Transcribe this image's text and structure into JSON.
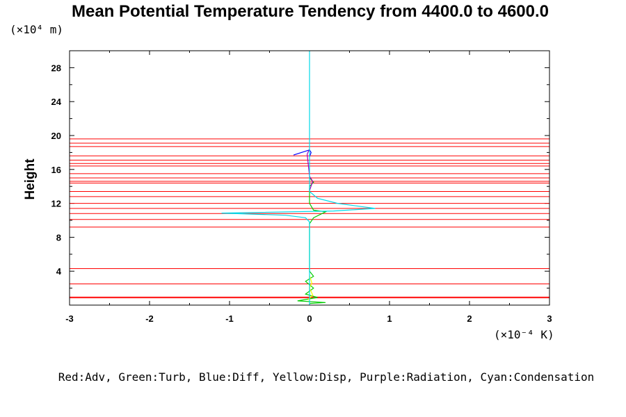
{
  "chart_data": {
    "type": "line",
    "title": "Mean Potential Temperature Tendency from 4400.0 to 4600.0",
    "ylabel": "Height",
    "yunit": "(×10⁴ m)",
    "xunit": "(×10⁻⁴ K)",
    "xlim": [
      -3,
      3
    ],
    "ylim": [
      0,
      30
    ],
    "xticks": [
      "-3",
      "-2",
      "-1",
      "0",
      "1",
      "2",
      "3"
    ],
    "yticks": [
      "4",
      "8",
      "12",
      "16",
      "20",
      "24",
      "28"
    ],
    "legend_note": "Red:Adv, Green:Turb, Blue:Diff, Yellow:Disp, Purple:Radiation, Cyan:Condensation",
    "colors": {
      "adv": "#ff0000",
      "turb": "#00cc00",
      "diff": "#0000ff",
      "disp": "#ffff00",
      "radiation": "#a000c0",
      "condensation": "#00d8e8"
    },
    "series": [
      {
        "key": "adv",
        "points": [
          [
            -3,
            0.85
          ],
          [
            3,
            0.85
          ],
          [
            -3,
            0.95
          ],
          [
            3,
            0.95
          ],
          [
            -3,
            2.5
          ],
          [
            3,
            2.5
          ],
          [
            -3,
            4.3
          ],
          [
            3,
            4.3
          ],
          [
            -3,
            9.2
          ],
          [
            3,
            9.2
          ],
          [
            -3,
            10.1
          ],
          [
            3,
            10.1
          ],
          [
            -3,
            10.8
          ],
          [
            3,
            10.8
          ],
          [
            -3,
            11.4
          ],
          [
            3,
            11.4
          ],
          [
            -3,
            12.0
          ],
          [
            3,
            12.0
          ],
          [
            -3,
            12.8
          ],
          [
            3,
            12.8
          ],
          [
            -3,
            13.4
          ],
          [
            3,
            13.4
          ],
          [
            -3,
            14.4
          ],
          [
            3,
            14.4
          ],
          [
            -3,
            14.6
          ],
          [
            3,
            14.6
          ],
          [
            -3,
            15.0
          ],
          [
            3,
            15.0
          ],
          [
            -3,
            15.5
          ],
          [
            3,
            15.5
          ],
          [
            -3,
            16.4
          ],
          [
            3,
            16.4
          ],
          [
            -3,
            16.7
          ],
          [
            3,
            16.7
          ],
          [
            -3,
            17.1
          ],
          [
            3,
            17.1
          ],
          [
            -3,
            17.6
          ],
          [
            3,
            17.6
          ],
          [
            -3,
            18.7
          ],
          [
            3,
            18.7
          ],
          [
            -3,
            19.1
          ],
          [
            3,
            19.1
          ],
          [
            -3,
            19.6
          ],
          [
            3,
            19.6
          ]
        ]
      },
      {
        "key": "turb",
        "points": [
          [
            0.0,
            0.2
          ],
          [
            0.2,
            0.3
          ],
          [
            -0.15,
            0.5
          ],
          [
            0.1,
            0.9
          ],
          [
            -0.05,
            1.3
          ],
          [
            0.05,
            2.0
          ],
          [
            -0.05,
            2.8
          ],
          [
            0.05,
            3.4
          ],
          [
            0.0,
            4.0
          ],
          [
            0.0,
            9.6
          ],
          [
            0.05,
            10.3
          ],
          [
            0.2,
            11.0
          ],
          [
            0.05,
            11.2
          ],
          [
            0.0,
            12.0
          ],
          [
            0.0,
            14.0
          ],
          [
            0.05,
            14.5
          ],
          [
            0.0,
            15.0
          ]
        ]
      },
      {
        "key": "diff",
        "points": [
          [
            0.0,
            17.5
          ],
          [
            0.02,
            18.0
          ],
          [
            0.0,
            18.3
          ],
          [
            -0.2,
            17.7
          ]
        ]
      },
      {
        "key": "disp",
        "points": [
          [
            -0.02,
            0.6
          ],
          [
            0.04,
            1.2
          ],
          [
            0.0,
            2.0
          ],
          [
            0.03,
            2.6
          ],
          [
            0.0,
            3.5
          ]
        ]
      },
      {
        "key": "radiation",
        "points": [
          [
            0.0,
            13.5
          ],
          [
            0.04,
            14.6
          ],
          [
            0.0,
            15.2
          ],
          [
            -0.03,
            17.8
          ],
          [
            0.0,
            18.4
          ]
        ]
      },
      {
        "key": "condensation",
        "points": [
          [
            0.0,
            0.0
          ],
          [
            0.0,
            9.8
          ],
          [
            -0.05,
            10.3
          ],
          [
            -0.3,
            10.6
          ],
          [
            -1.1,
            10.85
          ],
          [
            0.3,
            11.1
          ],
          [
            0.82,
            11.4
          ],
          [
            0.35,
            12.0
          ],
          [
            0.1,
            12.6
          ],
          [
            0.0,
            13.4
          ],
          [
            0.0,
            30.0
          ]
        ]
      }
    ]
  }
}
